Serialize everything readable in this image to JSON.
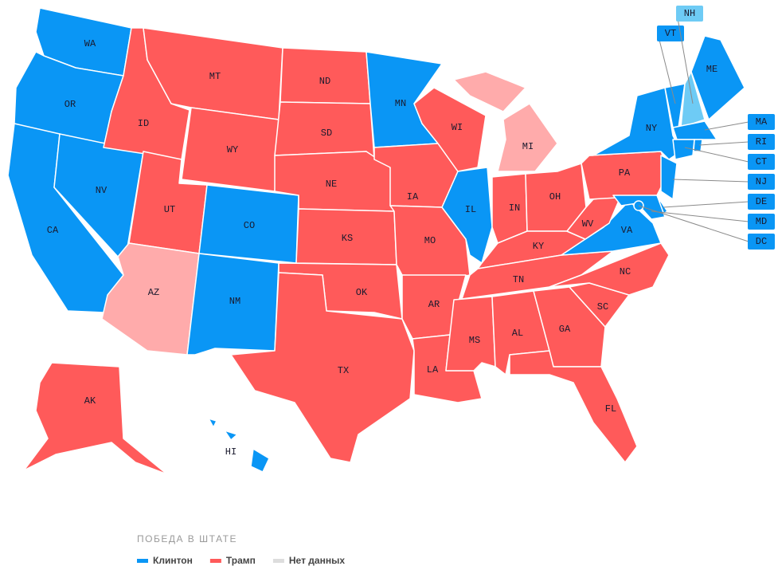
{
  "states": [
    {
      "code": "WA",
      "color": "#0a96f5"
    },
    {
      "code": "OR",
      "color": "#0a96f5"
    },
    {
      "code": "CA",
      "color": "#0a96f5"
    },
    {
      "code": "NV",
      "color": "#0a96f5"
    },
    {
      "code": "ID",
      "color": "#ff5a5a"
    },
    {
      "code": "MT",
      "color": "#ff5a5a"
    },
    {
      "code": "WY",
      "color": "#ff5a5a"
    },
    {
      "code": "UT",
      "color": "#ff5a5a"
    },
    {
      "code": "CO",
      "color": "#0a96f5"
    },
    {
      "code": "AZ",
      "color": "#ffabab"
    },
    {
      "code": "NM",
      "color": "#0a96f5"
    },
    {
      "code": "ND",
      "color": "#ff5a5a"
    },
    {
      "code": "SD",
      "color": "#ff5a5a"
    },
    {
      "code": "NE",
      "color": "#ff5a5a"
    },
    {
      "code": "KS",
      "color": "#ff5a5a"
    },
    {
      "code": "OK",
      "color": "#ff5a5a"
    },
    {
      "code": "TX",
      "color": "#ff5a5a"
    },
    {
      "code": "MN",
      "color": "#0a96f5"
    },
    {
      "code": "IA",
      "color": "#ff5a5a"
    },
    {
      "code": "MO",
      "color": "#ff5a5a"
    },
    {
      "code": "AR",
      "color": "#ff5a5a"
    },
    {
      "code": "LA",
      "color": "#ff5a5a"
    },
    {
      "code": "WI",
      "color": "#ff5a5a"
    },
    {
      "code": "IL",
      "color": "#0a96f5"
    },
    {
      "code": "MI",
      "color": "#ffabab"
    },
    {
      "code": "IN",
      "color": "#ff5a5a"
    },
    {
      "code": "OH",
      "color": "#ff5a5a"
    },
    {
      "code": "KY",
      "color": "#ff5a5a"
    },
    {
      "code": "TN",
      "color": "#ff5a5a"
    },
    {
      "code": "MS",
      "color": "#ff5a5a"
    },
    {
      "code": "AL",
      "color": "#ff5a5a"
    },
    {
      "code": "GA",
      "color": "#ff5a5a"
    },
    {
      "code": "FL",
      "color": "#ff5a5a"
    },
    {
      "code": "SC",
      "color": "#ff5a5a"
    },
    {
      "code": "NC",
      "color": "#ff5a5a"
    },
    {
      "code": "VA",
      "color": "#0a96f5"
    },
    {
      "code": "WV",
      "color": "#ff5a5a"
    },
    {
      "code": "PA",
      "color": "#ff5a5a"
    },
    {
      "code": "NY",
      "color": "#0a96f5"
    },
    {
      "code": "ME",
      "color": "#0a96f5"
    },
    {
      "code": "AK",
      "color": "#ff5a5a"
    },
    {
      "code": "HI",
      "color": "#0a96f5"
    },
    {
      "code": "VT",
      "color": "#0a96f5"
    },
    {
      "code": "NH",
      "color": "#6ecbf5"
    },
    {
      "code": "MA",
      "color": "#0a96f5"
    },
    {
      "code": "RI",
      "color": "#0a96f5"
    },
    {
      "code": "CT",
      "color": "#0a96f5"
    },
    {
      "code": "NJ",
      "color": "#0a96f5"
    },
    {
      "code": "DE",
      "color": "#0a96f5"
    },
    {
      "code": "MD",
      "color": "#0a96f5"
    },
    {
      "code": "DC",
      "color": "#0a96f5"
    }
  ],
  "legend": {
    "title": "ПОБЕДА В ШТАТЕ",
    "items": [
      {
        "label": "Клинтон",
        "color": "#0a96f5"
      },
      {
        "label": "Трамп",
        "color": "#ff5a5a"
      },
      {
        "label": "Нет данных",
        "color": "#dddddd"
      }
    ]
  }
}
